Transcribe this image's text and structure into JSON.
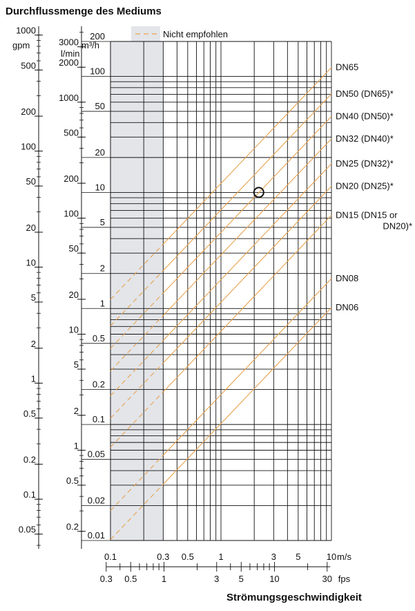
{
  "title": "Durchflussmenge des Mediums",
  "xlabel": "Strömungsgeschwindigkeit",
  "colors": {
    "accent": "#e8a24f",
    "zone": "#e3e5e9",
    "grid": "#111111"
  },
  "chart_data": {
    "type": "line",
    "xlabel": "Strömungsgeschwindigkeit",
    "ylabel": "Durchflussmenge des Mediums",
    "x_scale": "log",
    "y_scale": "log",
    "x_range": [
      0.1,
      10
    ],
    "y_range": [
      0.01,
      200
    ],
    "x_unit": "m/s",
    "y_unit": "m³/h",
    "legend": {
      "label": "Nicht empfohlen",
      "position": "top"
    },
    "not_recommended_zone": {
      "x_from": 0.1,
      "x_to": 0.3
    },
    "marker": {
      "x": 2.2,
      "y": 10
    },
    "axis_labels": {
      "gpm": "gpm",
      "lmin": "l/min",
      "m3h": "m³/h",
      "ms": "m/s",
      "fps": "fps"
    },
    "ticks": {
      "m3h": [
        "200",
        "100",
        "50",
        "20",
        "10",
        "5",
        "2",
        "1",
        "0.5",
        "0.2",
        "0.1",
        "0.05",
        "0.02",
        "0.01"
      ],
      "lmin": [
        "3000",
        "2000",
        "1000",
        "500",
        "200",
        "100",
        "50",
        "20",
        "10",
        "5",
        "2",
        "1",
        "0.5",
        "0.2"
      ],
      "gpm": [
        "1000",
        "500",
        "200",
        "100",
        "50",
        "20",
        "10",
        "5",
        "2",
        "1",
        "0.5",
        "0.2",
        "0.1",
        "0.05"
      ],
      "ms": [
        "0.1",
        "0.3",
        "0.5",
        "1",
        "3",
        "5",
        "10"
      ],
      "fps": [
        "0.3",
        "0.5",
        "1",
        "3",
        "5",
        "10",
        "30"
      ]
    },
    "series": [
      {
        "name": "DN65",
        "diameter_mm": 65
      },
      {
        "name": "DN50 (DN65)*",
        "diameter_mm": 50
      },
      {
        "name": "DN40 (DN50)*",
        "diameter_mm": 40
      },
      {
        "name": "DN32 (DN40)*",
        "diameter_mm": 32
      },
      {
        "name": "DN25 (DN32)*",
        "diameter_mm": 25
      },
      {
        "name": "DN20 (DN25)*",
        "diameter_mm": 20
      },
      {
        "name": "DN15 (DN15 or DN20)*",
        "diameter_mm": 15,
        "label_lines": [
          "DN15  (DN15 or",
          "DN20)*"
        ]
      },
      {
        "name": "DN08",
        "diameter_mm": 8
      },
      {
        "name": "DN06",
        "diameter_mm": 6
      }
    ]
  }
}
